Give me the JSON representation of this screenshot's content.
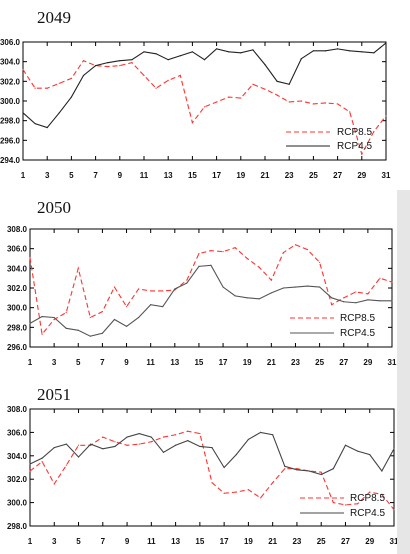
{
  "chart_data": [
    {
      "type": "line",
      "title": "2049",
      "x": [
        1,
        2,
        3,
        4,
        5,
        6,
        7,
        8,
        9,
        10,
        11,
        12,
        13,
        14,
        15,
        16,
        17,
        18,
        19,
        20,
        21,
        22,
        23,
        24,
        25,
        26,
        27,
        28,
        29,
        30,
        31
      ],
      "x_ticks": [
        "1",
        "3",
        "5",
        "7",
        "9",
        "11",
        "13",
        "15",
        "17",
        "19",
        "21",
        "23",
        "25",
        "27",
        "29",
        "31"
      ],
      "y_ticks": [
        "294.0",
        "296.0",
        "298.0",
        "300.0",
        "302.0",
        "304.0",
        "306.0"
      ],
      "ylim": [
        294,
        306
      ],
      "legend_position": "lower-right",
      "series": [
        {
          "name": "RCP8.5",
          "style": "dashed",
          "color": "#ff3333",
          "values": [
            303.2,
            301.3,
            301.3,
            301.8,
            302.3,
            304.1,
            303.6,
            303.5,
            303.6,
            303.9,
            302.6,
            301.3,
            302.1,
            302.6,
            297.8,
            299.4,
            299.9,
            300.4,
            300.3,
            301.7,
            301.2,
            300.6,
            299.9,
            300.0,
            299.7,
            299.8,
            299.7,
            298.9,
            294.6,
            296.9,
            298.5
          ]
        },
        {
          "name": "RCP4.5",
          "style": "solid",
          "color": "#222222",
          "values": [
            298.8,
            297.7,
            297.3,
            298.8,
            300.4,
            302.6,
            303.6,
            303.9,
            304.1,
            304.2,
            305.0,
            304.8,
            304.2,
            304.6,
            305.0,
            304.2,
            305.3,
            305.0,
            304.9,
            305.2,
            303.7,
            302.0,
            301.7,
            304.3,
            305.1,
            305.1,
            305.3,
            305.1,
            305.0,
            304.9,
            305.9
          ]
        }
      ]
    },
    {
      "type": "line",
      "title": "2050",
      "x": [
        1,
        2,
        3,
        4,
        5,
        6,
        7,
        8,
        9,
        10,
        11,
        12,
        13,
        14,
        15,
        16,
        17,
        18,
        19,
        20,
        21,
        22,
        23,
        24,
        25,
        26,
        27,
        28,
        29,
        30,
        31
      ],
      "x_ticks": [
        "1",
        "3",
        "5",
        "7",
        "9",
        "11",
        "13",
        "15",
        "17",
        "19",
        "21",
        "23",
        "25",
        "27",
        "29",
        "31"
      ],
      "y_ticks": [
        "296.0",
        "298.0",
        "300.0",
        "302.0",
        "304.0",
        "306.0",
        "308.0"
      ],
      "ylim": [
        296,
        308
      ],
      "legend_position": "lower-right",
      "series": [
        {
          "name": "RCP8.5",
          "style": "dashed",
          "color": "#ff3333",
          "values": [
            305.1,
            297.3,
            298.8,
            299.5,
            304.0,
            299.0,
            299.6,
            302.1,
            300.1,
            301.9,
            301.7,
            301.7,
            301.8,
            302.8,
            305.5,
            305.8,
            305.7,
            306.1,
            305.0,
            304.1,
            302.8,
            305.6,
            306.4,
            305.9,
            304.6,
            300.3,
            301.0,
            301.6,
            301.4,
            303.0,
            302.6
          ]
        },
        {
          "name": "RCP4.5",
          "style": "solid",
          "color": "#555555",
          "values": [
            298.4,
            299.1,
            299.0,
            297.9,
            297.7,
            297.1,
            297.4,
            298.8,
            298.1,
            299.0,
            300.3,
            300.1,
            301.9,
            302.5,
            304.2,
            304.3,
            302.1,
            301.2,
            301.0,
            300.9,
            301.5,
            302.0,
            302.1,
            302.2,
            302.1,
            301.0,
            300.6,
            300.5,
            300.8,
            300.7,
            300.7
          ]
        }
      ]
    },
    {
      "type": "line",
      "title": "2051",
      "x": [
        1,
        2,
        3,
        4,
        5,
        6,
        7,
        8,
        9,
        10,
        11,
        12,
        13,
        14,
        15,
        16,
        17,
        18,
        19,
        20,
        21,
        22,
        23,
        24,
        25,
        26,
        27,
        28,
        29,
        30,
        31
      ],
      "x_ticks": [
        "1",
        "3",
        "5",
        "7",
        "9",
        "11",
        "13",
        "15",
        "17",
        "19",
        "21",
        "23",
        "25",
        "27",
        "29",
        "31"
      ],
      "y_ticks": [
        "298.0",
        "300.0",
        "302.0",
        "304.0",
        "306.0",
        "308.0"
      ],
      "ylim": [
        298,
        308
      ],
      "legend_position": "lower-right",
      "series": [
        {
          "name": "RCP8.5",
          "style": "dashed",
          "color": "#ff3333",
          "values": [
            302.7,
            303.5,
            301.6,
            303.2,
            304.9,
            304.9,
            305.6,
            305.2,
            304.9,
            305.0,
            305.2,
            305.6,
            305.8,
            306.1,
            305.9,
            301.7,
            300.8,
            300.9,
            301.1,
            300.4,
            301.7,
            302.9,
            302.9,
            302.7,
            302.6,
            300.0,
            299.8,
            299.9,
            300.9,
            300.7,
            299.4
          ]
        },
        {
          "name": "RCP4.5",
          "style": "solid",
          "color": "#444444",
          "values": [
            303.3,
            303.8,
            304.7,
            305.0,
            303.9,
            305.0,
            304.6,
            304.8,
            305.6,
            305.9,
            305.6,
            304.3,
            304.9,
            305.3,
            304.8,
            304.7,
            303.0,
            304.1,
            305.4,
            306.0,
            305.8,
            303.1,
            302.8,
            302.7,
            302.4,
            302.9,
            304.9,
            304.4,
            304.1,
            302.7,
            304.6
          ]
        }
      ]
    }
  ]
}
